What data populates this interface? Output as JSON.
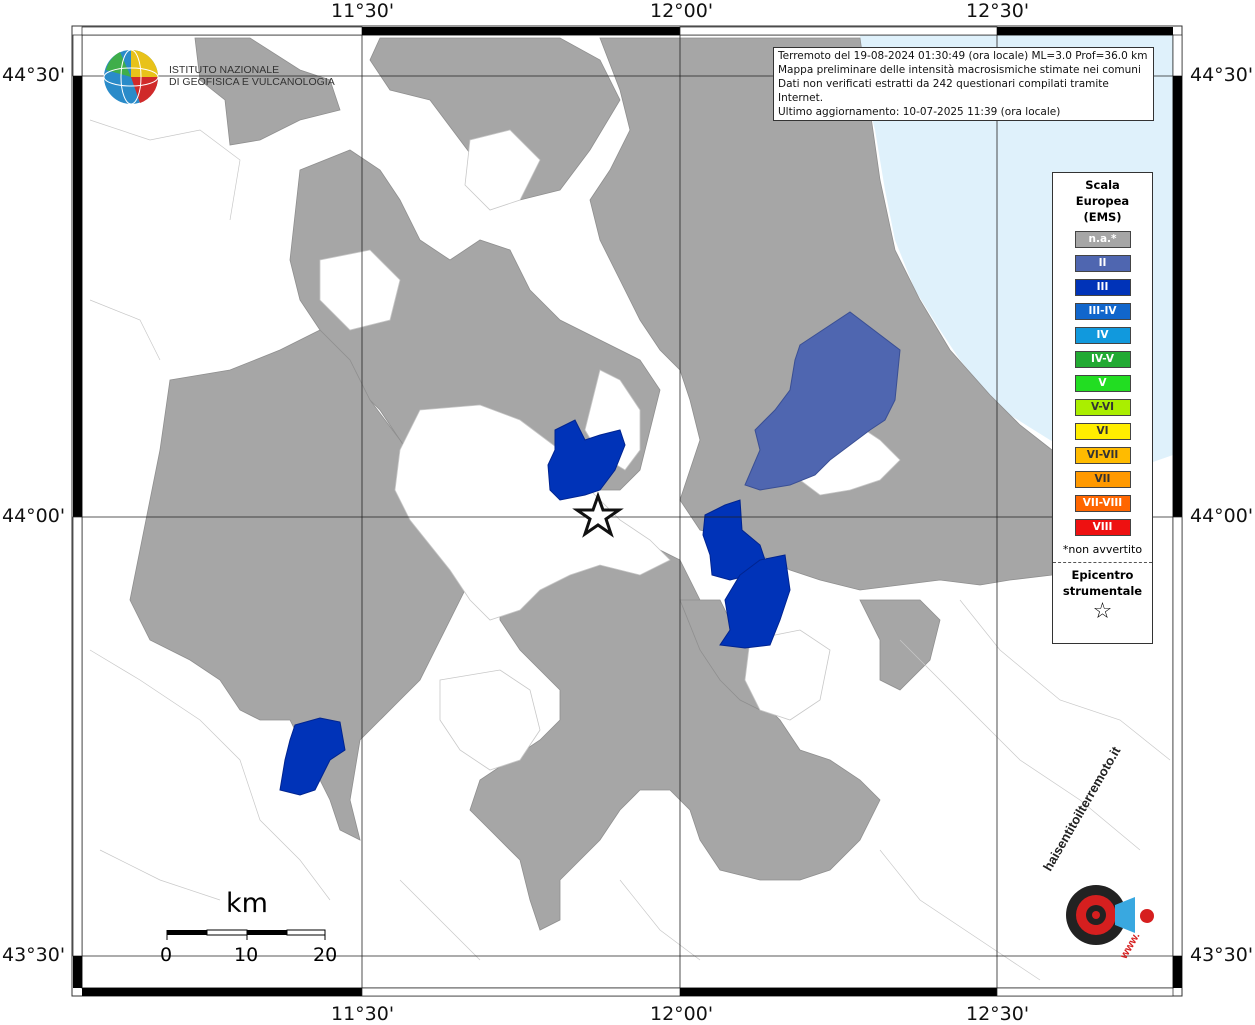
{
  "axes": {
    "top_labels": [
      "11°30'",
      "12°00'",
      "12°30'"
    ],
    "bottom_labels": [
      "11°30'",
      "12°00'",
      "12°30'"
    ],
    "left_labels": [
      "44°30'",
      "44°00'",
      "43°30'"
    ],
    "right_labels": [
      "44°30'",
      "44°00'",
      "43°30'"
    ]
  },
  "info": {
    "line1": "Terremoto del 19-08-2024 01:30:49 (ora locale) ML=3.0 Prof=36.0 km",
    "line2": "Mappa preliminare delle intensità macrosismiche stimate nei comuni",
    "line3": "Dati non verificati estratti da 242 questionari compilati tramite Internet.",
    "line4": "Ultimo aggiornamento: 10-07-2025 11:39 (ora locale)"
  },
  "logo": {
    "line1": "ISTITUTO NAZIONALE",
    "line2": "DI GEOFISICA E VULCANOLOGIA"
  },
  "legend": {
    "title1": "Scala",
    "title2": "Europea",
    "title3": "(EMS)",
    "items": [
      {
        "label": "n.a.*",
        "color": "#a6a6a6"
      },
      {
        "label": "II",
        "color": "#4f66b0"
      },
      {
        "label": "III",
        "color": "#0033b8"
      },
      {
        "label": "III-IV",
        "color": "#1166cc"
      },
      {
        "label": "IV",
        "color": "#1199dd"
      },
      {
        "label": "IV-V",
        "color": "#22aa33"
      },
      {
        "label": "V",
        "color": "#22dd22"
      },
      {
        "label": "V-VI",
        "color": "#aaee00"
      },
      {
        "label": "VI",
        "color": "#ffee00"
      },
      {
        "label": "VI-VII",
        "color": "#ffbb00"
      },
      {
        "label": "VII",
        "color": "#ff9900"
      },
      {
        "label": "VII-VIII",
        "color": "#ff6600"
      },
      {
        "label": "VIII",
        "color": "#ee1111"
      }
    ],
    "note": "*non avvertito",
    "epi1": "Epicentro",
    "epi2": "strumentale",
    "star": "☆"
  },
  "scale_bar": {
    "unit": "km",
    "ticks": [
      "0",
      "10",
      "20"
    ]
  },
  "badge": {
    "text": "haisentitoilterremoto.it",
    "url": "www."
  },
  "colors": {
    "na": "#a6a6a6",
    "ii": "#4f66b0",
    "iii": "#0033b8",
    "sea": "#dff1fb",
    "boundary": "#c8c8c8"
  }
}
